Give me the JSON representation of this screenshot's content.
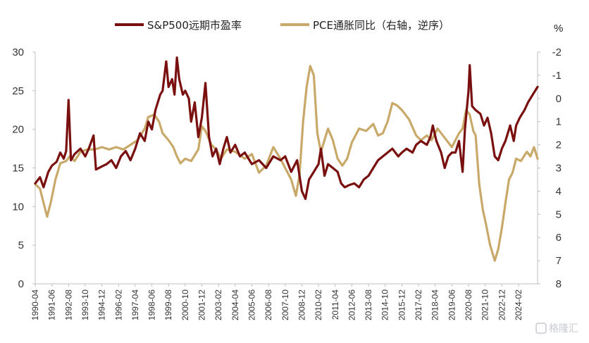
{
  "chart_data": {
    "type": "line",
    "title": "",
    "xlabel": "",
    "ylabel_left": "",
    "ylabel_right": "%",
    "x_range": [
      "1990-04",
      "2025-06"
    ],
    "ylim_left": [
      0,
      30
    ],
    "yticks_left": [
      "0",
      "5",
      "10",
      "15",
      "20",
      "25",
      "30"
    ],
    "ylim_right": [
      8,
      -2
    ],
    "yticks_right": [
      "-2",
      "-1",
      "0",
      "1",
      "2",
      "3",
      "4",
      "5",
      "6",
      "7",
      "8"
    ],
    "right_axis_inverted": true,
    "legend_position": "top",
    "grid": false,
    "x_tick_labels": [
      "1990-04",
      "1991-06",
      "1992-08",
      "1993-10",
      "1994-12",
      "1996-02",
      "1997-04",
      "1998-06",
      "1999-08",
      "2000-10",
      "2001-12",
      "2003-02",
      "2004-04",
      "2005-06",
      "2006-08",
      "2007-10",
      "2008-12",
      "2010-02",
      "2011-04",
      "2012-06",
      "2013-08",
      "2014-10",
      "2015-12",
      "2017-02",
      "2018-04",
      "2019-06",
      "2020-08",
      "2021-10",
      "2022-12",
      "2024-02"
    ],
    "series": [
      {
        "name": "S&P500远期市盈率",
        "axis": "left",
        "color": "#7a0f0f",
        "points": [
          [
            "1990-04",
            13.0
          ],
          [
            "1990-08",
            13.8
          ],
          [
            "1990-11",
            12.5
          ],
          [
            "1991-03",
            14.5
          ],
          [
            "1991-06",
            15.3
          ],
          [
            "1991-10",
            15.8
          ],
          [
            "1992-01",
            17.0
          ],
          [
            "1992-04",
            16.2
          ],
          [
            "1992-06",
            17.2
          ],
          [
            "1992-08",
            23.8
          ],
          [
            "1992-10",
            16.0
          ],
          [
            "1993-01",
            16.8
          ],
          [
            "1993-06",
            17.5
          ],
          [
            "1993-10",
            16.5
          ],
          [
            "1994-01",
            17.5
          ],
          [
            "1994-05",
            19.2
          ],
          [
            "1994-07",
            14.8
          ],
          [
            "1994-12",
            15.2
          ],
          [
            "1995-04",
            15.5
          ],
          [
            "1995-08",
            16.0
          ],
          [
            "1995-12",
            15.0
          ],
          [
            "1996-04",
            16.5
          ],
          [
            "1996-08",
            17.2
          ],
          [
            "1996-12",
            16.0
          ],
          [
            "1997-04",
            17.5
          ],
          [
            "1997-08",
            19.5
          ],
          [
            "1997-12",
            18.5
          ],
          [
            "1998-03",
            21.0
          ],
          [
            "1998-06",
            20.0
          ],
          [
            "1998-09",
            22.5
          ],
          [
            "1999-01",
            24.5
          ],
          [
            "1999-03",
            25.0
          ],
          [
            "1999-06",
            28.8
          ],
          [
            "1999-08",
            25.5
          ],
          [
            "1999-11",
            26.5
          ],
          [
            "2000-01",
            24.5
          ],
          [
            "2000-03",
            29.3
          ],
          [
            "2000-05",
            26.5
          ],
          [
            "2000-08",
            24.5
          ],
          [
            "2000-10",
            25.0
          ],
          [
            "2001-01",
            24.0
          ],
          [
            "2001-03",
            21.0
          ],
          [
            "2001-06",
            23.5
          ],
          [
            "2001-09",
            19.0
          ],
          [
            "2001-12",
            21.5
          ],
          [
            "2002-03",
            26.0
          ],
          [
            "2002-06",
            19.0
          ],
          [
            "2002-09",
            16.5
          ],
          [
            "2002-12",
            17.5
          ],
          [
            "2003-03",
            15.5
          ],
          [
            "2003-06",
            17.5
          ],
          [
            "2003-09",
            19.0
          ],
          [
            "2003-12",
            17.0
          ],
          [
            "2004-04",
            18.0
          ],
          [
            "2004-08",
            16.5
          ],
          [
            "2004-12",
            17.0
          ],
          [
            "2005-06",
            15.5
          ],
          [
            "2005-12",
            16.0
          ],
          [
            "2006-06",
            15.0
          ],
          [
            "2006-12",
            16.5
          ],
          [
            "2007-06",
            16.0
          ],
          [
            "2007-10",
            16.5
          ],
          [
            "2008-03",
            14.5
          ],
          [
            "2008-08",
            16.0
          ],
          [
            "2008-12",
            12.0
          ],
          [
            "2009-03",
            11.0
          ],
          [
            "2009-06",
            13.5
          ],
          [
            "2009-10",
            14.5
          ],
          [
            "2010-02",
            15.5
          ],
          [
            "2010-04",
            17.5
          ],
          [
            "2010-07",
            14.0
          ],
          [
            "2010-10",
            15.5
          ],
          [
            "2011-02",
            15.0
          ],
          [
            "2011-06",
            14.5
          ],
          [
            "2011-09",
            13.0
          ],
          [
            "2011-12",
            12.5
          ],
          [
            "2012-04",
            12.8
          ],
          [
            "2012-08",
            13.0
          ],
          [
            "2012-12",
            12.5
          ],
          [
            "2013-04",
            13.5
          ],
          [
            "2013-08",
            14.0
          ],
          [
            "2013-12",
            15.0
          ],
          [
            "2014-04",
            16.0
          ],
          [
            "2014-08",
            16.5
          ],
          [
            "2014-12",
            17.0
          ],
          [
            "2015-04",
            17.5
          ],
          [
            "2015-09",
            16.5
          ],
          [
            "2015-12",
            17.0
          ],
          [
            "2016-04",
            17.5
          ],
          [
            "2016-09",
            17.0
          ],
          [
            "2016-12",
            18.0
          ],
          [
            "2017-04",
            18.5
          ],
          [
            "2017-09",
            18.0
          ],
          [
            "2017-12",
            19.0
          ],
          [
            "2018-02",
            20.5
          ],
          [
            "2018-05",
            18.5
          ],
          [
            "2018-09",
            17.0
          ],
          [
            "2018-12",
            15.0
          ],
          [
            "2019-03",
            16.5
          ],
          [
            "2019-06",
            17.0
          ],
          [
            "2019-09",
            17.0
          ],
          [
            "2019-12",
            18.5
          ],
          [
            "2020-03",
            14.5
          ],
          [
            "2020-05",
            20.0
          ],
          [
            "2020-08",
            25.0
          ],
          [
            "2020-09",
            28.3
          ],
          [
            "2020-11",
            23.0
          ],
          [
            "2021-02",
            22.5
          ],
          [
            "2021-06",
            22.0
          ],
          [
            "2021-09",
            20.5
          ],
          [
            "2021-12",
            21.5
          ],
          [
            "2022-03",
            19.5
          ],
          [
            "2022-06",
            16.5
          ],
          [
            "2022-09",
            16.0
          ],
          [
            "2022-12",
            17.5
          ],
          [
            "2023-03",
            18.5
          ],
          [
            "2023-07",
            20.5
          ],
          [
            "2023-10",
            18.5
          ],
          [
            "2023-12",
            20.5
          ],
          [
            "2024-03",
            21.5
          ],
          [
            "2024-07",
            22.5
          ],
          [
            "2024-10",
            23.5
          ],
          [
            "2025-02",
            24.5
          ],
          [
            "2025-06",
            25.5
          ]
        ]
      },
      {
        "name": "PCE通胀同比（右轴，逆序）",
        "axis": "right",
        "color": "#c9a96a",
        "points": [
          [
            "1990-04",
            3.7
          ],
          [
            "1990-08",
            3.9
          ],
          [
            "1990-11",
            4.5
          ],
          [
            "1991-02",
            5.1
          ],
          [
            "1991-05",
            4.5
          ],
          [
            "1991-09",
            3.5
          ],
          [
            "1992-01",
            2.8
          ],
          [
            "1992-06",
            2.7
          ],
          [
            "1992-09",
            2.5
          ],
          [
            "1993-01",
            2.7
          ],
          [
            "1993-06",
            2.3
          ],
          [
            "1993-12",
            2.2
          ],
          [
            "1994-06",
            2.2
          ],
          [
            "1994-12",
            2.1
          ],
          [
            "1995-06",
            2.2
          ],
          [
            "1995-12",
            2.1
          ],
          [
            "1996-06",
            2.2
          ],
          [
            "1996-12",
            2.0
          ],
          [
            "1997-06",
            1.8
          ],
          [
            "1997-12",
            1.3
          ],
          [
            "1998-03",
            0.8
          ],
          [
            "1998-08",
            0.7
          ],
          [
            "1998-12",
            1.0
          ],
          [
            "1999-03",
            1.5
          ],
          [
            "1999-08",
            1.8
          ],
          [
            "1999-12",
            2.1
          ],
          [
            "2000-03",
            2.5
          ],
          [
            "2000-06",
            2.8
          ],
          [
            "2000-10",
            2.6
          ],
          [
            "2001-03",
            2.7
          ],
          [
            "2001-09",
            2.2
          ],
          [
            "2001-12",
            1.2
          ],
          [
            "2002-03",
            1.4
          ],
          [
            "2002-08",
            2.0
          ],
          [
            "2002-12",
            2.2
          ],
          [
            "2003-04",
            2.6
          ],
          [
            "2003-09",
            2.2
          ],
          [
            "2004-04",
            2.3
          ],
          [
            "2004-12",
            2.6
          ],
          [
            "2005-06",
            2.4
          ],
          [
            "2005-12",
            3.2
          ],
          [
            "2006-06",
            2.9
          ],
          [
            "2006-12",
            2.1
          ],
          [
            "2007-06",
            2.6
          ],
          [
            "2007-10",
            3.0
          ],
          [
            "2008-03",
            3.5
          ],
          [
            "2008-07",
            4.2
          ],
          [
            "2008-10",
            3.3
          ],
          [
            "2009-01",
            1.0
          ],
          [
            "2009-04",
            -0.5
          ],
          [
            "2009-07",
            -1.4
          ],
          [
            "2009-10",
            -1.0
          ],
          [
            "2010-01",
            1.5
          ],
          [
            "2010-04",
            2.3
          ],
          [
            "2010-10",
            1.3
          ],
          [
            "2011-02",
            1.8
          ],
          [
            "2011-06",
            2.6
          ],
          [
            "2011-10",
            2.9
          ],
          [
            "2012-02",
            2.6
          ],
          [
            "2012-06",
            1.9
          ],
          [
            "2012-12",
            1.3
          ],
          [
            "2013-06",
            1.4
          ],
          [
            "2013-12",
            1.1
          ],
          [
            "2014-04",
            1.6
          ],
          [
            "2014-08",
            1.5
          ],
          [
            "2014-12",
            1.0
          ],
          [
            "2015-04",
            0.2
          ],
          [
            "2015-08",
            0.3
          ],
          [
            "2015-12",
            0.5
          ],
          [
            "2016-06",
            0.9
          ],
          [
            "2016-12",
            1.6
          ],
          [
            "2017-04",
            1.8
          ],
          [
            "2017-09",
            1.6
          ],
          [
            "2018-01",
            1.8
          ],
          [
            "2018-06",
            1.3
          ],
          [
            "2018-12",
            1.7
          ],
          [
            "2019-06",
            2.1
          ],
          [
            "2019-12",
            1.5
          ],
          [
            "2020-03",
            1.3
          ],
          [
            "2020-06",
            0.5
          ],
          [
            "2020-09",
            0.7
          ],
          [
            "2020-12",
            1.4
          ],
          [
            "2021-02",
            1.6
          ],
          [
            "2021-05",
            3.7
          ],
          [
            "2021-08",
            4.8
          ],
          [
            "2021-11",
            5.5
          ],
          [
            "2022-02",
            6.3
          ],
          [
            "2022-06",
            7.0
          ],
          [
            "2022-09",
            6.5
          ],
          [
            "2022-12",
            5.6
          ],
          [
            "2023-03",
            4.5
          ],
          [
            "2023-06",
            3.5
          ],
          [
            "2023-09",
            3.2
          ],
          [
            "2023-12",
            2.6
          ],
          [
            "2024-04",
            2.7
          ],
          [
            "2024-09",
            2.3
          ],
          [
            "2024-12",
            2.5
          ],
          [
            "2025-03",
            2.1
          ],
          [
            "2025-06",
            2.6
          ]
        ]
      }
    ]
  },
  "watermark": "格隆汇"
}
